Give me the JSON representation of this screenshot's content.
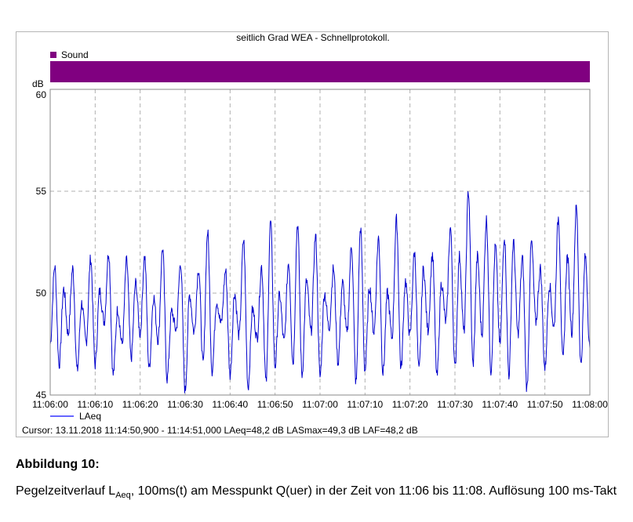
{
  "chart_data": {
    "type": "line",
    "title": "seitlich Grad WEA - Schnellprotokoll.",
    "band": {
      "label": "Sound",
      "color": "#800080"
    },
    "ylabel": "dB",
    "ylim": [
      45,
      60
    ],
    "yticks": [
      "45",
      "50",
      "55",
      "60"
    ],
    "xlim": [
      "11:06:00",
      "11:08:00"
    ],
    "xticks": [
      "11:06:00",
      "11:06:10",
      "11:06:20",
      "11:06:30",
      "11:06:40",
      "11:06:50",
      "11:07:00",
      "11:07:10",
      "11:07:20",
      "11:07:30",
      "11:07:40",
      "11:07:50",
      "11:08:00"
    ],
    "grid": true,
    "legend_position": "bottom-left",
    "series": [
      {
        "name": "LAeq",
        "color": "#0000cc",
        "x_seconds_after": "11:06:00",
        "x": [
          0,
          1,
          2,
          3,
          4,
          5,
          6,
          7,
          8,
          9,
          10,
          11,
          12,
          13,
          14,
          15,
          16,
          17,
          18,
          19,
          20,
          21,
          22,
          23,
          24,
          25,
          26,
          27,
          28,
          29,
          30,
          31,
          32,
          33,
          34,
          35,
          36,
          37,
          38,
          39,
          40,
          41,
          42,
          43,
          44,
          45,
          46,
          47,
          48,
          49,
          50,
          51,
          52,
          53,
          54,
          55,
          56,
          57,
          58,
          59,
          60,
          61,
          62,
          63,
          64,
          65,
          66,
          67,
          68,
          69,
          70,
          71,
          72,
          73,
          74,
          75,
          76,
          77,
          78,
          79,
          80,
          81,
          82,
          83,
          84,
          85,
          86,
          87,
          88,
          89,
          90,
          91,
          92,
          93,
          94,
          95,
          96,
          97,
          98,
          99,
          100,
          101,
          102,
          103,
          104,
          105,
          106,
          107,
          108,
          109,
          110,
          111,
          112,
          113,
          114,
          115,
          116,
          117,
          118,
          119,
          120
        ],
        "values": [
          47.5,
          51.3,
          46.5,
          50.2,
          48.0,
          51.2,
          46.2,
          49.5,
          47.6,
          51.7,
          46.5,
          50.1,
          48.6,
          52.0,
          46.0,
          49.2,
          47.5,
          51.6,
          46.8,
          50.5,
          48.0,
          51.8,
          46.3,
          49.8,
          47.7,
          52.2,
          45.8,
          49.1,
          48.2,
          51.5,
          45.2,
          49.9,
          48.1,
          51.2,
          46.5,
          53.0,
          46.2,
          49.6,
          48.5,
          51.1,
          46.0,
          50.0,
          47.9,
          52.6,
          45.4,
          49.2,
          47.8,
          51.3,
          45.6,
          53.5,
          46.4,
          49.9,
          47.6,
          51.5,
          46.6,
          53.4,
          46.0,
          50.6,
          48.1,
          52.8,
          45.9,
          50.0,
          48.3,
          51.2,
          46.6,
          50.5,
          48.0,
          52.3,
          45.6,
          53.2,
          46.2,
          50.3,
          48.1,
          52.7,
          46.1,
          50.0,
          47.8,
          53.6,
          46.3,
          50.6,
          47.9,
          52.0,
          46.2,
          51.2,
          48.2,
          51.9,
          45.9,
          50.5,
          48.6,
          53.2,
          46.3,
          51.8,
          48.1,
          55.0,
          46.5,
          51.8,
          48.0,
          53.6,
          46.2,
          52.3,
          47.5,
          52.8,
          46.0,
          52.5,
          48.0,
          51.7,
          45.3,
          52.5,
          48.6,
          51.2,
          46.3,
          50.4,
          48.3,
          53.7,
          46.7,
          51.8,
          48.1,
          54.2,
          46.5,
          51.8,
          47.3
        ]
      }
    ]
  },
  "cursor_readout": "Cursor: 13.11.2018 11:14:50,900 - 11:14:51,000  LAeq=48,2 dB  LASmax=49,3 dB  LAF=48,2 dB",
  "caption": {
    "title": "Abbildung 10:",
    "text_before": "Pegelzeitverlauf L",
    "subscript": "Aeq",
    "text_after": ", 100ms(t) am Messpunkt Q(uer) in der Zeit von 11:06 bis 11:08. Auflösung 100 ms-Takt"
  }
}
